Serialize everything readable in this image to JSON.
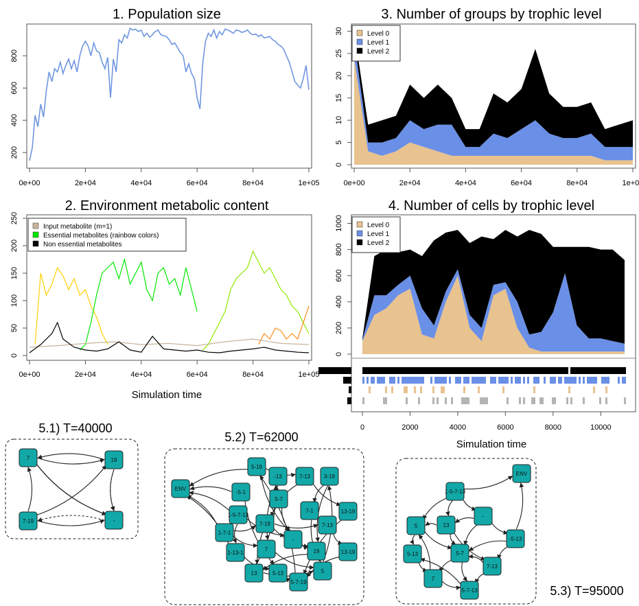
{
  "colors": {
    "line_blue": "#6f96e0",
    "level0": "#e8c28f",
    "level1": "#6a8fe6",
    "level2": "#000000",
    "input_met": "#c7b49b",
    "essential": "#00e800",
    "nonessential": "#000000",
    "node_fill": "#12a8a8",
    "gray_bar": "#b4b4b4"
  },
  "chart_data": [
    {
      "id": "population",
      "type": "line",
      "title": "1. Population size",
      "xlabel": "",
      "ylabel": "",
      "xlim": [
        0,
        100000
      ],
      "ylim": [
        120,
        980
      ],
      "xtick_values": [
        0,
        20000,
        40000,
        60000,
        80000,
        100000
      ],
      "xticks": [
        "0e+00",
        "2e+04",
        "4e+04",
        "6e+04",
        "8e+04",
        "1e+05"
      ],
      "yticks": [
        "200",
        "400",
        "600",
        "800"
      ],
      "ytick_values": [
        200,
        400,
        600,
        800
      ],
      "series": [
        {
          "color": "#6f96e0",
          "x": [
            0,
            1000,
            2000,
            3000,
            4000,
            5000,
            6000,
            7000,
            8000,
            9000,
            10000,
            11000,
            12000,
            13000,
            14000,
            15000,
            16000,
            17000,
            18000,
            19000,
            20000,
            21000,
            22000,
            23000,
            24000,
            25000,
            26000,
            27000,
            28000,
            29000,
            30000,
            31000,
            32000,
            33000,
            34000,
            35000,
            36000,
            37000,
            38000,
            39000,
            40000,
            41000,
            42000,
            43000,
            44000,
            45000,
            46000,
            47000,
            48000,
            49000,
            50000,
            51000,
            52000,
            53000,
            54000,
            55000,
            56000,
            57000,
            58000,
            59000,
            60000,
            61000,
            62000,
            63000,
            64000,
            65000,
            66000,
            67000,
            68000,
            69000,
            70000,
            71000,
            72000,
            73000,
            74000,
            75000,
            76000,
            77000,
            78000,
            79000,
            80000,
            81000,
            82000,
            83000,
            84000,
            85000,
            86000,
            87000,
            88000,
            89000,
            90000,
            91000,
            92000,
            93000,
            94000,
            95000,
            96000,
            97000,
            98000,
            99000,
            100000
          ],
          "y": [
            150,
            230,
            430,
            360,
            500,
            420,
            580,
            700,
            640,
            720,
            700,
            760,
            690,
            740,
            780,
            720,
            770,
            700,
            800,
            860,
            890,
            860,
            800,
            880,
            830,
            820,
            760,
            720,
            790,
            540,
            780,
            700,
            900,
            880,
            930,
            910,
            970,
            960,
            965,
            950,
            960,
            920,
            940,
            915,
            930,
            950,
            960,
            930,
            925,
            920,
            900,
            870,
            880,
            850,
            820,
            800,
            700,
            750,
            690,
            660,
            540,
            470,
            750,
            890,
            940,
            920,
            960,
            910,
            950,
            930,
            965,
            960,
            950,
            940,
            960,
            955,
            945,
            950,
            960,
            940,
            930,
            935,
            920,
            930,
            910,
            915,
            920,
            900,
            890,
            870,
            860,
            840,
            800,
            760,
            700,
            640,
            620,
            600,
            660,
            740,
            590
          ]
        }
      ]
    },
    {
      "id": "metabolic",
      "type": "line",
      "title": "2. Environment metabolic content",
      "xlabel": "Simulation time",
      "ylabel": "",
      "xlim": [
        0,
        100000
      ],
      "ylim": [
        0,
        250
      ],
      "xtick_values": [
        0,
        20000,
        40000,
        60000,
        80000,
        100000
      ],
      "xticks": [
        "0e+00",
        "2e+04",
        "4e+04",
        "6e+04",
        "8e+04",
        "1e+05"
      ],
      "yticks": [
        "0",
        "50",
        "100",
        "150",
        "200",
        "250"
      ],
      "ytick_values": [
        0,
        50,
        100,
        150,
        200,
        250
      ],
      "legend": [
        {
          "label": "Input metabolite (m=1)",
          "color": "#c7b49b"
        },
        {
          "label": "Essential metabolites (rainbow colors)",
          "color": "#00e800"
        },
        {
          "label": "Non essential metabolites",
          "color": "#000000"
        }
      ],
      "series": [
        {
          "color": "#ffcf00",
          "x": [
            2000,
            4000,
            6000,
            8000,
            10000,
            12000,
            14000,
            16000,
            18000,
            20000,
            22000,
            24000,
            26000,
            28000
          ],
          "y": [
            20,
            150,
            110,
            130,
            160,
            145,
            120,
            140,
            110,
            120,
            90,
            70,
            40,
            20
          ]
        },
        {
          "color": "#00e800",
          "x": [
            18000,
            20000,
            22000,
            24000,
            26000,
            28000,
            30000,
            32000,
            34000,
            36000,
            38000,
            40000,
            42000,
            44000,
            46000,
            48000,
            50000,
            52000,
            54000,
            56000,
            58000,
            60000
          ],
          "y": [
            10,
            20,
            60,
            110,
            150,
            160,
            170,
            140,
            175,
            130,
            150,
            170,
            120,
            100,
            150,
            160,
            130,
            140,
            110,
            160,
            120,
            80
          ]
        },
        {
          "color": "#90e800",
          "x": [
            62000,
            64000,
            66000,
            68000,
            70000,
            72000,
            74000,
            76000,
            78000,
            80000,
            82000,
            84000,
            86000,
            88000,
            90000,
            92000,
            94000,
            96000,
            98000,
            100000
          ],
          "y": [
            10,
            20,
            40,
            60,
            80,
            120,
            140,
            150,
            160,
            190,
            170,
            150,
            160,
            140,
            120,
            110,
            90,
            80,
            60,
            40
          ]
        },
        {
          "color": "#ff8c1a",
          "x": [
            82000,
            84000,
            86000,
            88000,
            90000,
            92000,
            94000,
            96000,
            98000,
            100000
          ],
          "y": [
            20,
            40,
            30,
            50,
            45,
            30,
            40,
            30,
            60,
            90
          ]
        },
        {
          "color": "#c7b49b",
          "x": [
            0,
            10000,
            20000,
            30000,
            40000,
            50000,
            60000,
            70000,
            80000,
            90000,
            100000
          ],
          "y": [
            15,
            18,
            22,
            25,
            20,
            22,
            18,
            25,
            30,
            22,
            20
          ]
        },
        {
          "color": "#000000",
          "x": [
            0,
            4000,
            8000,
            10000,
            12000,
            16000,
            20000,
            24000,
            28000,
            32000,
            36000,
            40000,
            44000,
            48000,
            52000,
            56000,
            60000,
            64000,
            68000,
            72000,
            76000,
            80000,
            84000,
            88000,
            92000,
            96000,
            100000
          ],
          "y": [
            5,
            20,
            40,
            60,
            30,
            15,
            10,
            8,
            12,
            25,
            10,
            6,
            35,
            12,
            10,
            8,
            10,
            6,
            5,
            8,
            10,
            12,
            15,
            10,
            8,
            6,
            5
          ]
        }
      ]
    },
    {
      "id": "groups",
      "type": "area",
      "title": "3. Number of groups by trophic level",
      "xlabel": "",
      "ylabel": "",
      "xlim": [
        0,
        100000
      ],
      "ylim": [
        0,
        31
      ],
      "xtick_values": [
        0,
        20000,
        40000,
        60000,
        80000,
        100000
      ],
      "xticks": [
        "0e+00",
        "2e+04",
        "4e+04",
        "6e+04",
        "8e+04",
        "1e+05"
      ],
      "yticks": [
        "0",
        "5",
        "10",
        "15",
        "20",
        "25",
        "30"
      ],
      "ytick_values": [
        0,
        5,
        10,
        15,
        20,
        25,
        30
      ],
      "legend": [
        {
          "label": "Level 0",
          "color": "#e8c28f"
        },
        {
          "label": "Level 1",
          "color": "#6a8fe6"
        },
        {
          "label": "Level 2",
          "color": "#000000"
        }
      ],
      "x": [
        0,
        5000,
        10000,
        15000,
        20000,
        25000,
        30000,
        35000,
        40000,
        45000,
        50000,
        55000,
        60000,
        65000,
        70000,
        75000,
        80000,
        85000,
        90000,
        95000,
        100000
      ],
      "series": [
        {
          "name": "Level 0",
          "values": [
            24,
            3,
            2,
            3,
            5,
            4,
            3,
            2,
            2,
            2,
            2,
            2,
            2,
            2,
            2,
            2,
            2,
            2,
            1,
            1,
            1
          ]
        },
        {
          "name": "Level 1",
          "values": [
            4,
            2,
            3,
            3,
            5,
            4,
            6,
            7,
            2,
            2,
            5,
            4,
            6,
            8,
            5,
            4,
            4,
            5,
            3,
            3,
            3
          ]
        },
        {
          "name": "Level 2",
          "values": [
            2,
            4,
            5,
            5,
            8,
            7,
            9,
            6,
            4,
            4,
            9,
            8,
            9,
            16,
            9,
            7,
            7,
            7,
            4,
            5,
            6
          ]
        }
      ]
    },
    {
      "id": "cells",
      "type": "area",
      "title": "4. Number of cells by trophic level",
      "xlabel": "Simulation time",
      "ylabel": "",
      "xlim": [
        0,
        11000
      ],
      "ylim": [
        0,
        1050
      ],
      "xtick_values": [
        0,
        2000,
        4000,
        6000,
        8000,
        10000
      ],
      "xticks": [
        "0",
        "2000",
        "4000",
        "6000",
        "8000",
        "10000"
      ],
      "yticks": [
        "0",
        "200",
        "400",
        "600",
        "800",
        "1000"
      ],
      "ytick_values": [
        0,
        200,
        400,
        600,
        800,
        1000
      ],
      "legend": [
        {
          "label": "Level 0",
          "color": "#e8c28f"
        },
        {
          "label": "Level 1",
          "color": "#6a8fe6"
        },
        {
          "label": "Level 2",
          "color": "#000000"
        }
      ],
      "x": [
        0,
        500,
        1000,
        1500,
        2000,
        2500,
        3000,
        3500,
        4000,
        4500,
        5000,
        5500,
        6000,
        6500,
        7000,
        7500,
        8000,
        8500,
        9000,
        9500,
        10000,
        10500,
        11000
      ],
      "series": [
        {
          "name": "Level 0",
          "values": [
            100,
            300,
            350,
            450,
            500,
            150,
            120,
            400,
            600,
            200,
            100,
            450,
            500,
            200,
            50,
            20,
            20,
            20,
            20,
            20,
            20,
            20,
            20
          ]
        },
        {
          "name": "Level 1",
          "values": [
            10,
            150,
            100,
            80,
            100,
            200,
            100,
            80,
            50,
            100,
            100,
            80,
            50,
            200,
            100,
            150,
            300,
            600,
            200,
            100,
            100,
            80,
            60
          ]
        },
        {
          "name": "Level 2",
          "values": [
            10,
            300,
            350,
            250,
            200,
            400,
            650,
            450,
            300,
            550,
            700,
            350,
            400,
            500,
            800,
            750,
            500,
            200,
            600,
            700,
            680,
            700,
            640
          ]
        }
      ],
      "raster": [
        {
          "color": "#000000",
          "label_bar": 48
        },
        {
          "color": "#6a8fe6",
          "label_bar": 12
        },
        {
          "color": "#e8c28f",
          "label_bar": 4
        },
        {
          "color": "#b4b4b4",
          "label_bar": 6
        }
      ]
    }
  ],
  "networks": [
    {
      "id": "net1",
      "title": "5.1) T=40000",
      "nodes": [
        {
          "id": "n7",
          "label": "7"
        },
        {
          "id": "n19",
          "label": "19"
        },
        {
          "id": "n719",
          "label": "7-19"
        },
        {
          "id": "nd",
          "label": "-"
        }
      ]
    },
    {
      "id": "net2",
      "title": "5.2) T=62000",
      "nodes": [
        {
          "id": "env",
          "label": "ENV"
        },
        {
          "id": "a",
          "label": "5-19"
        },
        {
          "id": "b",
          "label": "-13"
        },
        {
          "id": "c",
          "label": "7-13"
        },
        {
          "id": "d",
          "label": "3-19"
        },
        {
          "id": "e",
          "label": "-5-1"
        },
        {
          "id": "f",
          "label": "5-7"
        },
        {
          "id": "g",
          "label": "7-1"
        },
        {
          "id": "h",
          "label": "13-19"
        },
        {
          "id": "i",
          "label": "1-5-7-13"
        },
        {
          "id": "j",
          "label": "7-19"
        },
        {
          "id": "k",
          "label": "7-13"
        },
        {
          "id": "l",
          "label": "1-7-1"
        },
        {
          "id": "m",
          "label": "-"
        },
        {
          "id": "n",
          "label": "7"
        },
        {
          "id": "o",
          "label": "19"
        },
        {
          "id": "p",
          "label": "13-19"
        },
        {
          "id": "q",
          "label": "1-13-1"
        },
        {
          "id": "r",
          "label": "5-13"
        },
        {
          "id": "s",
          "label": "13"
        },
        {
          "id": "t",
          "label": "5"
        },
        {
          "id": "u",
          "label": "5-7-19"
        }
      ]
    },
    {
      "id": "net3",
      "title": "5.3) T=95000",
      "nodes": [
        {
          "id": "env",
          "label": "ENV"
        },
        {
          "id": "a",
          "label": "1-5-7-13"
        },
        {
          "id": "b",
          "label": "5"
        },
        {
          "id": "c",
          "label": "13"
        },
        {
          "id": "d",
          "label": "-"
        },
        {
          "id": "e",
          "label": "-5-13"
        },
        {
          "id": "f",
          "label": "5-13"
        },
        {
          "id": "g",
          "label": "5-7"
        },
        {
          "id": "h",
          "label": "7-13"
        },
        {
          "id": "i",
          "label": "7"
        },
        {
          "id": "j",
          "label": "5-7-13"
        }
      ]
    }
  ]
}
